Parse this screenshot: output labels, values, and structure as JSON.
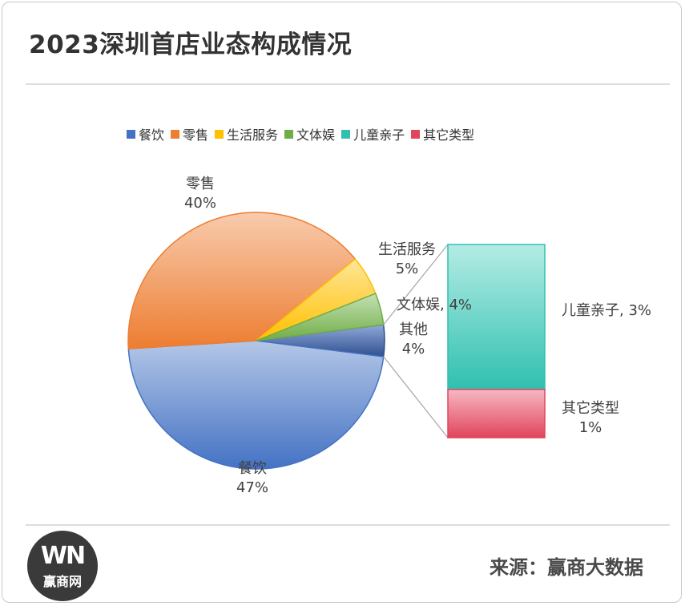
{
  "title": "2023深圳首店业态构成情况",
  "legend": [
    {
      "label": "餐饮",
      "color": "#4472c4"
    },
    {
      "label": "零售",
      "color": "#ed7d31"
    },
    {
      "label": "生活服务",
      "color": "#ffc000"
    },
    {
      "label": "文体娱",
      "color": "#70ad47"
    },
    {
      "label": "儿童亲子",
      "color": "#2fc0b0"
    },
    {
      "label": "其它类型",
      "color": "#e0455c"
    }
  ],
  "chart_data": {
    "type": "pie",
    "subtype": "bar-of-pie",
    "slices": [
      {
        "label": "餐饮",
        "value": 47,
        "display": "47%"
      },
      {
        "label": "零售",
        "value": 40,
        "display": "40%"
      },
      {
        "label": "生活服务",
        "value": 5,
        "display": "5%"
      },
      {
        "label": "文体娱",
        "value": 4,
        "display": "4%"
      },
      {
        "label": "其他",
        "value": 4,
        "display": "4%"
      }
    ],
    "secondary_bar": [
      {
        "label": "儿童亲子",
        "value": 3,
        "display": "3%"
      },
      {
        "label": "其它类型",
        "value": 1,
        "display": "1%"
      }
    ],
    "legend_position": "top"
  },
  "footer": {
    "logo_mark": "WN",
    "logo_text": "赢商网",
    "source": "来源：赢商大数据"
  }
}
